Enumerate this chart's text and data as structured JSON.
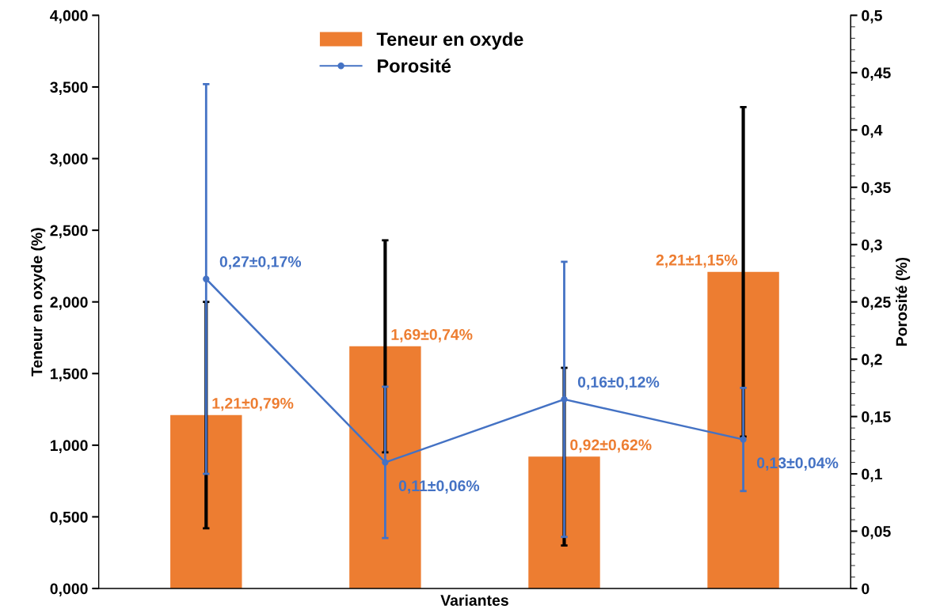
{
  "chart_data": {
    "type": "bar",
    "xlabel": "Variantes",
    "ylabel": "Teneur en oxyde (%)",
    "y2label": "Porosité (%)",
    "categories": [
      null,
      null,
      null,
      null
    ],
    "series": [
      {
        "name": "Teneur en oxyde",
        "type": "bar",
        "color": "#ed7d31",
        "values": [
          1.21,
          1.69,
          0.92,
          2.21
        ],
        "errors": [
          0.79,
          0.74,
          0.62,
          1.15
        ],
        "value_labels": [
          "1,21±0,79%",
          "1,69±0,74%",
          "0,92±0,62%",
          "2,21±1,15%"
        ]
      },
      {
        "name": "Porosité",
        "type": "line",
        "axis": "y2",
        "color": "#4472c4",
        "marker": "circle",
        "values": [
          0.27,
          0.11,
          0.165,
          0.13
        ],
        "errors": [
          0.17,
          0.066,
          0.12,
          0.045
        ],
        "value_labels": [
          "0,27±0,17%",
          "0,11±0,06%",
          "0,16±0,12%",
          "0,13±0,04%"
        ]
      }
    ],
    "ylim": [
      0,
      4
    ],
    "yticks": [
      {
        "value": 0,
        "label": "0,000"
      },
      {
        "value": 0.5,
        "label": "0,500"
      },
      {
        "value": 1,
        "label": "1,000"
      },
      {
        "value": 1.5,
        "label": "1,500"
      },
      {
        "value": 2,
        "label": "2,000"
      },
      {
        "value": 2.5,
        "label": "2,500"
      },
      {
        "value": 3,
        "label": "3,000"
      },
      {
        "value": 3.5,
        "label": "3,500"
      },
      {
        "value": 4,
        "label": "4,000"
      }
    ],
    "y2lim": [
      0,
      0.5
    ],
    "y2ticks": [
      {
        "value": 0,
        "label": "0"
      },
      {
        "value": 0.05,
        "label": "0,05"
      },
      {
        "value": 0.1,
        "label": "0,1"
      },
      {
        "value": 0.15,
        "label": "0,15"
      },
      {
        "value": 0.2,
        "label": "0,2"
      },
      {
        "value": 0.25,
        "label": "0,25"
      },
      {
        "value": 0.3,
        "label": "0,3"
      },
      {
        "value": 0.35,
        "label": "0,35"
      },
      {
        "value": 0.4,
        "label": "0,4"
      },
      {
        "value": 0.45,
        "label": "0,45"
      },
      {
        "value": 0.5,
        "label": "0,5"
      }
    ],
    "legend": "top"
  }
}
